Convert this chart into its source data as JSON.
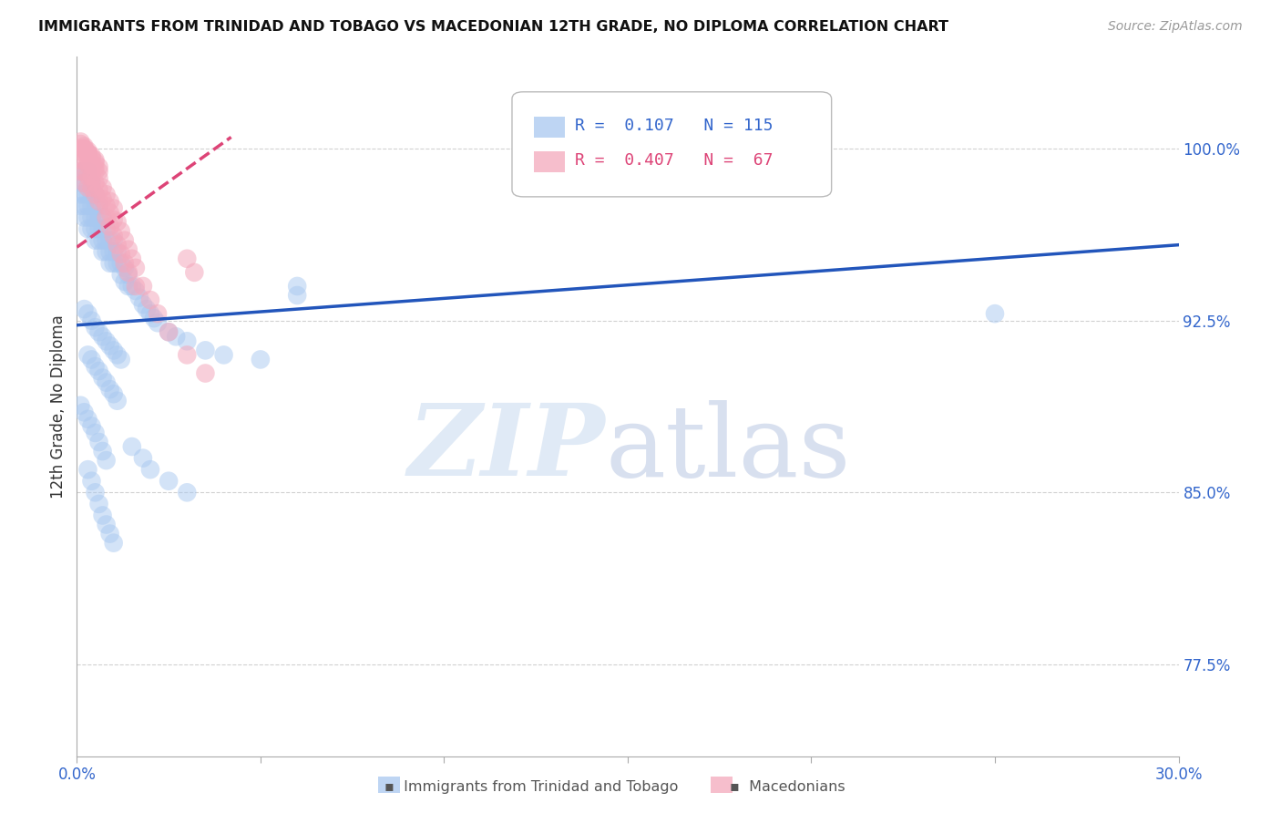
{
  "title": "IMMIGRANTS FROM TRINIDAD AND TOBAGO VS MACEDONIAN 12TH GRADE, NO DIPLOMA CORRELATION CHART",
  "source": "Source: ZipAtlas.com",
  "ylabel_label": "12th Grade, No Diploma",
  "ytick_labels": [
    "77.5%",
    "85.0%",
    "92.5%",
    "100.0%"
  ],
  "ytick_values": [
    0.775,
    0.85,
    0.925,
    1.0
  ],
  "xlim": [
    0.0,
    0.3
  ],
  "ylim": [
    0.735,
    1.04
  ],
  "legend_blue_r": "0.107",
  "legend_blue_n": "115",
  "legend_pink_r": "0.407",
  "legend_pink_n": "67",
  "blue_color": "#a8c8f0",
  "pink_color": "#f4a8bc",
  "blue_line_color": "#2255bb",
  "pink_line_color": "#dd4477",
  "blue_line_x": [
    0.0,
    0.3
  ],
  "blue_line_y": [
    0.923,
    0.958
  ],
  "pink_line_x": [
    0.0,
    0.042
  ],
  "pink_line_y": [
    0.957,
    1.005
  ],
  "blue_scatter_x": [
    0.001,
    0.001,
    0.001,
    0.001,
    0.002,
    0.002,
    0.002,
    0.002,
    0.002,
    0.003,
    0.003,
    0.003,
    0.003,
    0.003,
    0.003,
    0.004,
    0.004,
    0.004,
    0.004,
    0.004,
    0.005,
    0.005,
    0.005,
    0.005,
    0.005,
    0.006,
    0.006,
    0.006,
    0.006,
    0.007,
    0.007,
    0.007,
    0.007,
    0.008,
    0.008,
    0.008,
    0.009,
    0.009,
    0.009,
    0.01,
    0.01,
    0.01,
    0.011,
    0.011,
    0.012,
    0.012,
    0.013,
    0.013,
    0.014,
    0.014,
    0.015,
    0.016,
    0.017,
    0.018,
    0.019,
    0.02,
    0.021,
    0.022,
    0.025,
    0.027,
    0.03,
    0.035,
    0.04,
    0.05,
    0.06,
    0.06,
    0.002,
    0.003,
    0.004,
    0.005,
    0.006,
    0.007,
    0.008,
    0.009,
    0.01,
    0.011,
    0.012,
    0.003,
    0.004,
    0.005,
    0.006,
    0.007,
    0.008,
    0.009,
    0.01,
    0.011,
    0.001,
    0.002,
    0.003,
    0.004,
    0.005,
    0.006,
    0.007,
    0.008,
    0.015,
    0.018,
    0.02,
    0.025,
    0.03,
    0.25,
    0.003,
    0.004,
    0.005,
    0.006,
    0.007,
    0.008,
    0.009,
    0.01
  ],
  "blue_scatter_y": [
    0.99,
    0.985,
    0.98,
    0.975,
    0.99,
    0.985,
    0.98,
    0.975,
    0.97,
    0.99,
    0.985,
    0.98,
    0.975,
    0.97,
    0.965,
    0.985,
    0.98,
    0.975,
    0.97,
    0.965,
    0.98,
    0.975,
    0.97,
    0.965,
    0.96,
    0.975,
    0.97,
    0.965,
    0.96,
    0.97,
    0.965,
    0.96,
    0.955,
    0.965,
    0.96,
    0.955,
    0.96,
    0.955,
    0.95,
    0.96,
    0.955,
    0.95,
    0.955,
    0.95,
    0.95,
    0.945,
    0.948,
    0.942,
    0.945,
    0.94,
    0.94,
    0.938,
    0.935,
    0.932,
    0.93,
    0.928,
    0.926,
    0.924,
    0.92,
    0.918,
    0.916,
    0.912,
    0.91,
    0.908,
    0.94,
    0.936,
    0.93,
    0.928,
    0.925,
    0.922,
    0.92,
    0.918,
    0.916,
    0.914,
    0.912,
    0.91,
    0.908,
    0.91,
    0.908,
    0.905,
    0.903,
    0.9,
    0.898,
    0.895,
    0.893,
    0.89,
    0.888,
    0.885,
    0.882,
    0.879,
    0.876,
    0.872,
    0.868,
    0.864,
    0.87,
    0.865,
    0.86,
    0.855,
    0.85,
    0.928,
    0.86,
    0.855,
    0.85,
    0.845,
    0.84,
    0.836,
    0.832,
    0.828
  ],
  "pink_scatter_x": [
    0.001,
    0.001,
    0.001,
    0.002,
    0.002,
    0.002,
    0.002,
    0.003,
    0.003,
    0.003,
    0.003,
    0.004,
    0.004,
    0.004,
    0.005,
    0.005,
    0.005,
    0.006,
    0.006,
    0.006,
    0.007,
    0.007,
    0.008,
    0.008,
    0.009,
    0.009,
    0.01,
    0.01,
    0.011,
    0.012,
    0.013,
    0.014,
    0.015,
    0.016,
    0.018,
    0.02,
    0.022,
    0.025,
    0.03,
    0.035,
    0.001,
    0.002,
    0.003,
    0.004,
    0.005,
    0.006,
    0.002,
    0.003,
    0.004,
    0.005,
    0.006,
    0.001,
    0.002,
    0.003,
    0.004,
    0.005,
    0.03,
    0.032,
    0.008,
    0.009,
    0.01,
    0.011,
    0.012,
    0.013,
    0.014,
    0.016
  ],
  "pink_scatter_y": [
    1.0,
    0.995,
    0.99,
    1.0,
    0.995,
    0.99,
    0.985,
    0.998,
    0.993,
    0.988,
    0.983,
    0.993,
    0.988,
    0.983,
    0.99,
    0.985,
    0.98,
    0.987,
    0.982,
    0.977,
    0.983,
    0.978,
    0.98,
    0.975,
    0.977,
    0.972,
    0.974,
    0.969,
    0.968,
    0.964,
    0.96,
    0.956,
    0.952,
    0.948,
    0.94,
    0.934,
    0.928,
    0.92,
    0.91,
    0.902,
    1.002,
    1.0,
    0.998,
    0.996,
    0.994,
    0.992,
    0.998,
    0.996,
    0.994,
    0.992,
    0.99,
    1.003,
    1.001,
    0.999,
    0.997,
    0.995,
    0.952,
    0.946,
    0.97,
    0.966,
    0.962,
    0.958,
    0.954,
    0.95,
    0.946,
    0.94
  ]
}
